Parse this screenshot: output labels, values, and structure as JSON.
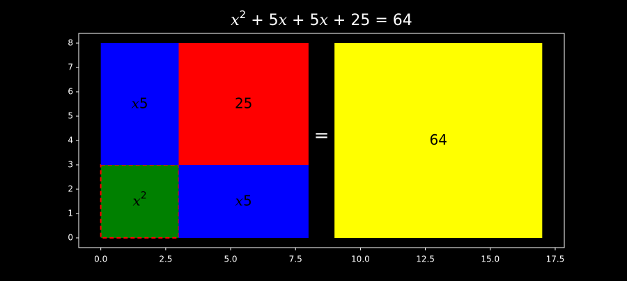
{
  "chart_data": {
    "type": "area",
    "title": {
      "parts": [
        {
          "text": "x",
          "italic": true
        },
        {
          "text": "2",
          "sup": true
        },
        {
          "text": " + 5",
          "italic": false
        },
        {
          "text": "x",
          "italic": true
        },
        {
          "text": " + 5",
          "italic": false
        },
        {
          "text": "x",
          "italic": true
        },
        {
          "text": " + 25 = 64",
          "italic": false
        }
      ]
    },
    "xlim": [
      -0.85,
      17.85
    ],
    "ylim": [
      -0.4,
      8.4
    ],
    "x_ticks": [
      0.0,
      2.5,
      5.0,
      7.5,
      10.0,
      12.5,
      15.0,
      17.5
    ],
    "x_tick_labels": [
      "0.0",
      "2.5",
      "5.0",
      "7.5",
      "10.0",
      "12.5",
      "15.0",
      "17.5"
    ],
    "y_ticks": [
      0,
      1,
      2,
      3,
      4,
      5,
      6,
      7,
      8
    ],
    "y_tick_labels": [
      "0",
      "1",
      "2",
      "3",
      "4",
      "5",
      "6",
      "7",
      "8"
    ],
    "grid": false,
    "rectangles": [
      {
        "name": "x-squared",
        "x0": 0,
        "y0": 0,
        "x1": 3,
        "y1": 3,
        "color": "#008000",
        "label": [
          {
            "text": "x",
            "italic": true
          },
          {
            "text": "2",
            "sup": true
          }
        ],
        "dashed_border": "#ff0000"
      },
      {
        "name": "x5-left",
        "x0": 0,
        "y0": 3,
        "x1": 3,
        "y1": 8,
        "color": "#0000ff",
        "label": [
          {
            "text": "x",
            "italic": true
          },
          {
            "text": "5",
            "italic": false
          }
        ]
      },
      {
        "name": "x5-bottom",
        "x0": 3,
        "y0": 0,
        "x1": 8,
        "y1": 3,
        "color": "#0000ff",
        "label": [
          {
            "text": "x",
            "italic": true
          },
          {
            "text": "5",
            "italic": false
          }
        ]
      },
      {
        "name": "twenty-five",
        "x0": 3,
        "y0": 3,
        "x1": 8,
        "y1": 8,
        "color": "#ff0000",
        "label": [
          {
            "text": "25",
            "italic": false
          }
        ]
      },
      {
        "name": "sixty-four",
        "x0": 9,
        "y0": 0,
        "x1": 17,
        "y1": 8,
        "color": "#ffff00",
        "label": [
          {
            "text": "64",
            "italic": false
          }
        ]
      }
    ],
    "equals_sign": {
      "text": "=",
      "x": 8.5,
      "y": 4.2
    },
    "colors": {
      "background": "#000000",
      "axes": "#ffffff",
      "label_text": "#000000",
      "title_text": "#ffffff"
    }
  }
}
